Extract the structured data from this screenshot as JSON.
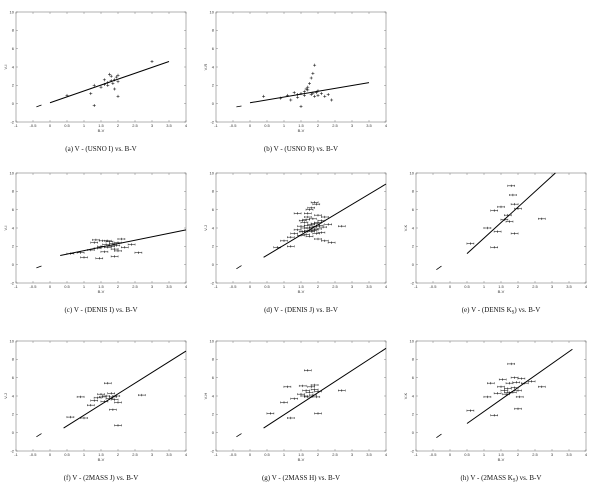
{
  "chart_data": [
    {
      "type": "scatter",
      "caption": "(a) V - (USNO I) vs. B-V",
      "xlabel": "B-V",
      "ylabel": "V-I",
      "xlim": [
        -1,
        4
      ],
      "ylim": [
        -2,
        10
      ],
      "xticks": [
        "-1",
        "-0.5",
        "0",
        "0.5",
        "1",
        "1.5",
        "2",
        "2.5",
        "3",
        "3.5",
        "4"
      ],
      "yticks": [
        "-2",
        "0",
        "2",
        "4",
        "6",
        "8",
        "10"
      ],
      "errorbars": false,
      "fit_line": [
        [
          0,
          0.1
        ],
        [
          3.5,
          4.6
        ]
      ],
      "dash_line": [
        [
          -0.4,
          -0.35
        ],
        [
          -0.25,
          -0.15
        ]
      ],
      "points": [
        [
          0.5,
          0.9
        ],
        [
          1.2,
          1.1
        ],
        [
          1.3,
          2.0
        ],
        [
          1.5,
          1.8
        ],
        [
          1.6,
          2.1
        ],
        [
          1.7,
          2.3
        ],
        [
          1.7,
          2.0
        ],
        [
          1.8,
          2.5
        ],
        [
          1.8,
          3.0
        ],
        [
          1.85,
          2.2
        ],
        [
          1.9,
          2.6
        ],
        [
          1.9,
          1.6
        ],
        [
          1.95,
          2.9
        ],
        [
          2.0,
          3.1
        ],
        [
          2.0,
          2.4
        ],
        [
          1.3,
          -0.2
        ],
        [
          2.0,
          0.8
        ],
        [
          3.0,
          4.6
        ],
        [
          1.6,
          2.6
        ],
        [
          1.75,
          3.2
        ]
      ]
    },
    {
      "type": "scatter",
      "caption": "(b) V - (USNO R) vs. B-V",
      "xlabel": "B-V",
      "ylabel": "V-R",
      "xlim": [
        -1,
        4
      ],
      "ylim": [
        -2,
        10
      ],
      "xticks": [
        "-1",
        "-0.5",
        "0",
        "0.5",
        "1",
        "1.5",
        "2",
        "2.5",
        "3",
        "3.5",
        "4"
      ],
      "yticks": [
        "-2",
        "0",
        "2",
        "4",
        "6",
        "8",
        "10"
      ],
      "errorbars": false,
      "fit_line": [
        [
          0,
          0.1
        ],
        [
          3.5,
          2.3
        ]
      ],
      "dash_line": [
        [
          -0.4,
          -0.35
        ],
        [
          -0.25,
          -0.25
        ]
      ],
      "points": [
        [
          0.4,
          0.8
        ],
        [
          0.9,
          0.6
        ],
        [
          1.1,
          0.9
        ],
        [
          1.2,
          0.4
        ],
        [
          1.3,
          1.2
        ],
        [
          1.4,
          1.0
        ],
        [
          1.5,
          1.1
        ],
        [
          1.6,
          0.9
        ],
        [
          1.6,
          1.3
        ],
        [
          1.7,
          1.5
        ],
        [
          1.7,
          1.8
        ],
        [
          1.75,
          2.2
        ],
        [
          1.8,
          1.0
        ],
        [
          1.8,
          2.8
        ],
        [
          1.85,
          3.3
        ],
        [
          1.9,
          4.2
        ],
        [
          1.9,
          0.8
        ],
        [
          1.95,
          1.2
        ],
        [
          2.0,
          1.4
        ],
        [
          2.0,
          0.9
        ],
        [
          2.1,
          1.1
        ],
        [
          2.2,
          0.8
        ],
        [
          2.3,
          1.0
        ],
        [
          1.5,
          -0.3
        ],
        [
          1.4,
          0.7
        ],
        [
          2.4,
          0.4
        ],
        [
          1.65,
          1.6
        ],
        [
          1.85,
          1.15
        ]
      ]
    },
    {
      "type": "scatter",
      "caption": "(c) V - (DENIS I) vs. B-V",
      "xlabel": "B-V",
      "ylabel": "V-I",
      "xlim": [
        -1,
        4
      ],
      "ylim": [
        -2,
        10
      ],
      "xticks": [
        "-1",
        "-0.5",
        "0",
        "0.5",
        "1",
        "1.5",
        "2",
        "2.5",
        "3",
        "3.5",
        "4"
      ],
      "yticks": [
        "-2",
        "0",
        "2",
        "4",
        "6",
        "8",
        "10"
      ],
      "errorbars": true,
      "fit_line": [
        [
          0.3,
          1.0
        ],
        [
          4.0,
          3.8
        ]
      ],
      "dash_line": [
        [
          -0.4,
          -0.35
        ],
        [
          -0.25,
          -0.15
        ]
      ],
      "points": [
        [
          0.6,
          1.2
        ],
        [
          0.9,
          1.3
        ],
        [
          1.0,
          0.8
        ],
        [
          1.2,
          1.6
        ],
        [
          1.3,
          2.4
        ],
        [
          1.4,
          1.8
        ],
        [
          1.5,
          2.0
        ],
        [
          1.55,
          2.6
        ],
        [
          1.6,
          1.4
        ],
        [
          1.65,
          2.2
        ],
        [
          1.7,
          1.9
        ],
        [
          1.75,
          2.5
        ],
        [
          1.8,
          2.0
        ],
        [
          1.85,
          2.3
        ],
        [
          1.9,
          1.7
        ],
        [
          1.95,
          2.1
        ],
        [
          2.0,
          2.4
        ],
        [
          2.0,
          1.5
        ],
        [
          2.1,
          2.8
        ],
        [
          2.2,
          1.9
        ],
        [
          2.6,
          1.3
        ],
        [
          2.4,
          2.2
        ],
        [
          1.45,
          0.7
        ],
        [
          1.35,
          2.7
        ],
        [
          1.9,
          0.9
        ],
        [
          1.7,
          2.6
        ]
      ]
    },
    {
      "type": "scatter",
      "caption": "(d) V - (DENIS J) vs. B-V",
      "xlabel": "B-V",
      "ylabel": "V-J",
      "xlim": [
        -1,
        4
      ],
      "ylim": [
        -2,
        10
      ],
      "xticks": [
        "-1",
        "-0.5",
        "0",
        "0.5",
        "1",
        "1.5",
        "2",
        "2.5",
        "3",
        "3.5",
        "4"
      ],
      "yticks": [
        "-2",
        "0",
        "2",
        "4",
        "6",
        "8",
        "10"
      ],
      "errorbars": true,
      "fit_line": [
        [
          0.4,
          0.8
        ],
        [
          4.0,
          8.8
        ]
      ],
      "dash_line": [
        [
          -0.4,
          -0.45
        ],
        [
          -0.25,
          -0.1
        ]
      ],
      "points": [
        [
          0.8,
          1.9
        ],
        [
          1.0,
          2.6
        ],
        [
          1.2,
          3.0
        ],
        [
          1.3,
          3.4
        ],
        [
          1.4,
          3.8
        ],
        [
          1.5,
          3.2
        ],
        [
          1.5,
          4.2
        ],
        [
          1.55,
          3.6
        ],
        [
          1.6,
          4.0
        ],
        [
          1.6,
          4.6
        ],
        [
          1.65,
          3.3
        ],
        [
          1.65,
          4.9
        ],
        [
          1.7,
          3.7
        ],
        [
          1.7,
          4.3
        ],
        [
          1.7,
          5.6
        ],
        [
          1.75,
          4.0
        ],
        [
          1.75,
          3.1
        ],
        [
          1.8,
          4.4
        ],
        [
          1.8,
          3.6
        ],
        [
          1.8,
          6.2
        ],
        [
          1.85,
          4.1
        ],
        [
          1.85,
          5.0
        ],
        [
          1.9,
          3.8
        ],
        [
          1.9,
          4.5
        ],
        [
          1.9,
          6.8
        ],
        [
          1.95,
          4.2
        ],
        [
          1.95,
          3.4
        ],
        [
          2.0,
          4.6
        ],
        [
          2.0,
          5.4
        ],
        [
          2.0,
          3.9
        ],
        [
          2.05,
          4.3
        ],
        [
          2.1,
          4.8
        ],
        [
          2.1,
          3.5
        ],
        [
          2.15,
          4.1
        ],
        [
          2.2,
          5.2
        ],
        [
          2.2,
          2.6
        ],
        [
          2.3,
          4.4
        ],
        [
          2.4,
          2.4
        ],
        [
          2.7,
          4.2
        ],
        [
          1.4,
          5.6
        ],
        [
          1.2,
          2.0
        ],
        [
          1.55,
          4.8
        ],
        [
          1.75,
          6.0
        ],
        [
          1.6,
          3.6
        ],
        [
          1.85,
          3.7
        ],
        [
          1.95,
          6.6
        ],
        [
          2.0,
          2.8
        ],
        [
          1.7,
          5.2
        ]
      ]
    },
    {
      "type": "scatter",
      "caption": "(e) V - (DENIS K_S) vs. B-V",
      "xlabel": "B-V",
      "ylabel": "V-K",
      "xlim": [
        -1,
        4
      ],
      "ylim": [
        -2,
        10
      ],
      "xticks": [
        "-1",
        "-0.5",
        "0",
        "0.5",
        "1",
        "1.5",
        "2",
        "2.5",
        "3",
        "3.5",
        "4"
      ],
      "yticks": [
        "-2",
        "0",
        "2",
        "4",
        "6",
        "8",
        "10"
      ],
      "errorbars": true,
      "fit_line": [
        [
          0.5,
          1.2
        ],
        [
          3.1,
          10.0
        ]
      ],
      "dash_line": [
        [
          -0.4,
          -0.55
        ],
        [
          -0.25,
          -0.15
        ]
      ],
      "points": [
        [
          0.6,
          2.3
        ],
        [
          1.1,
          4.0
        ],
        [
          1.3,
          5.9
        ],
        [
          1.4,
          3.6
        ],
        [
          1.5,
          6.3
        ],
        [
          1.6,
          4.9
        ],
        [
          1.7,
          5.4
        ],
        [
          1.8,
          8.6
        ],
        [
          1.85,
          7.6
        ],
        [
          1.9,
          6.6
        ],
        [
          1.9,
          3.4
        ],
        [
          2.0,
          6.1
        ],
        [
          2.7,
          5.0
        ],
        [
          1.3,
          1.9
        ],
        [
          1.75,
          4.7
        ]
      ]
    },
    {
      "type": "scatter",
      "caption": "(f) V - (2MASS J) vs. B-V",
      "xlabel": "B-V",
      "ylabel": "V-J",
      "xlim": [
        -1,
        4
      ],
      "ylim": [
        -2,
        10
      ],
      "xticks": [
        "-1",
        "-0.5",
        "0",
        "0.5",
        "1",
        "1.5",
        "2",
        "2.5",
        "3",
        "3.5",
        "4"
      ],
      "yticks": [
        "-2",
        "0",
        "2",
        "4",
        "6",
        "8",
        "10"
      ],
      "errorbars": true,
      "fit_line": [
        [
          0.4,
          0.5
        ],
        [
          4.0,
          8.9
        ]
      ],
      "dash_line": [
        [
          -0.4,
          -0.45
        ],
        [
          -0.25,
          -0.1
        ]
      ],
      "points": [
        [
          0.6,
          1.7
        ],
        [
          0.9,
          3.9
        ],
        [
          1.0,
          1.6
        ],
        [
          1.2,
          3.0
        ],
        [
          1.3,
          3.5
        ],
        [
          1.4,
          3.8
        ],
        [
          1.5,
          4.2
        ],
        [
          1.6,
          3.4
        ],
        [
          1.65,
          4.0
        ],
        [
          1.7,
          5.4
        ],
        [
          1.75,
          3.7
        ],
        [
          1.8,
          4.3
        ],
        [
          1.85,
          2.5
        ],
        [
          1.9,
          3.6
        ],
        [
          1.95,
          4.0
        ],
        [
          2.0,
          0.8
        ],
        [
          2.0,
          3.3
        ],
        [
          2.7,
          4.1
        ],
        [
          1.55,
          3.9
        ],
        [
          1.85,
          3.9
        ]
      ]
    },
    {
      "type": "scatter",
      "caption": "(g) V - (2MASS H) vs. B-V",
      "xlabel": "B-V",
      "ylabel": "V-H",
      "xlim": [
        -1,
        4
      ],
      "ylim": [
        -2,
        10
      ],
      "xticks": [
        "-1",
        "-0.5",
        "0",
        "0.5",
        "1",
        "1.5",
        "2",
        "2.5",
        "3",
        "3.5",
        "4"
      ],
      "yticks": [
        "-2",
        "0",
        "2",
        "4",
        "6",
        "8",
        "10"
      ],
      "errorbars": true,
      "fit_line": [
        [
          0.4,
          0.5
        ],
        [
          4.0,
          9.2
        ]
      ],
      "dash_line": [
        [
          -0.4,
          -0.45
        ],
        [
          -0.25,
          -0.1
        ]
      ],
      "points": [
        [
          0.6,
          2.1
        ],
        [
          1.0,
          3.3
        ],
        [
          1.1,
          5.0
        ],
        [
          1.2,
          1.6
        ],
        [
          1.3,
          3.7
        ],
        [
          1.5,
          4.2
        ],
        [
          1.55,
          5.1
        ],
        [
          1.6,
          4.0
        ],
        [
          1.65,
          4.6
        ],
        [
          1.7,
          6.8
        ],
        [
          1.75,
          4.4
        ],
        [
          1.8,
          5.0
        ],
        [
          1.85,
          4.1
        ],
        [
          1.9,
          4.7
        ],
        [
          1.95,
          3.9
        ],
        [
          2.0,
          2.1
        ],
        [
          2.0,
          4.5
        ],
        [
          2.7,
          4.6
        ],
        [
          1.7,
          3.9
        ],
        [
          1.9,
          5.2
        ]
      ]
    },
    {
      "type": "scatter",
      "caption": "(h) V - (2MASS K_S) vs. B-V",
      "xlabel": "B-V",
      "ylabel": "V-K",
      "xlim": [
        -1,
        4
      ],
      "ylim": [
        -2,
        10
      ],
      "xticks": [
        "-1",
        "-0.5",
        "0",
        "0.5",
        "1",
        "1.5",
        "2",
        "2.5",
        "3",
        "3.5",
        "4"
      ],
      "yticks": [
        "-2",
        "0",
        "2",
        "4",
        "6",
        "8",
        "10"
      ],
      "errorbars": true,
      "fit_line": [
        [
          0.5,
          1.0
        ],
        [
          3.6,
          9.1
        ]
      ],
      "dash_line": [
        [
          -0.4,
          -0.55
        ],
        [
          -0.25,
          -0.15
        ]
      ],
      "points": [
        [
          0.6,
          2.4
        ],
        [
          1.1,
          3.9
        ],
        [
          1.2,
          5.4
        ],
        [
          1.3,
          1.9
        ],
        [
          1.4,
          4.3
        ],
        [
          1.5,
          5.0
        ],
        [
          1.6,
          4.6
        ],
        [
          1.7,
          4.8
        ],
        [
          1.75,
          5.4
        ],
        [
          1.8,
          7.5
        ],
        [
          1.85,
          4.4
        ],
        [
          1.9,
          4.9
        ],
        [
          1.95,
          5.5
        ],
        [
          2.0,
          2.6
        ],
        [
          2.0,
          4.6
        ],
        [
          2.1,
          5.9
        ],
        [
          2.2,
          5.4
        ],
        [
          2.4,
          5.6
        ],
        [
          2.7,
          5.0
        ],
        [
          1.55,
          5.8
        ],
        [
          1.65,
          4.2
        ],
        [
          1.9,
          6.0
        ],
        [
          2.05,
          3.9
        ],
        [
          1.7,
          4.4
        ]
      ]
    }
  ]
}
